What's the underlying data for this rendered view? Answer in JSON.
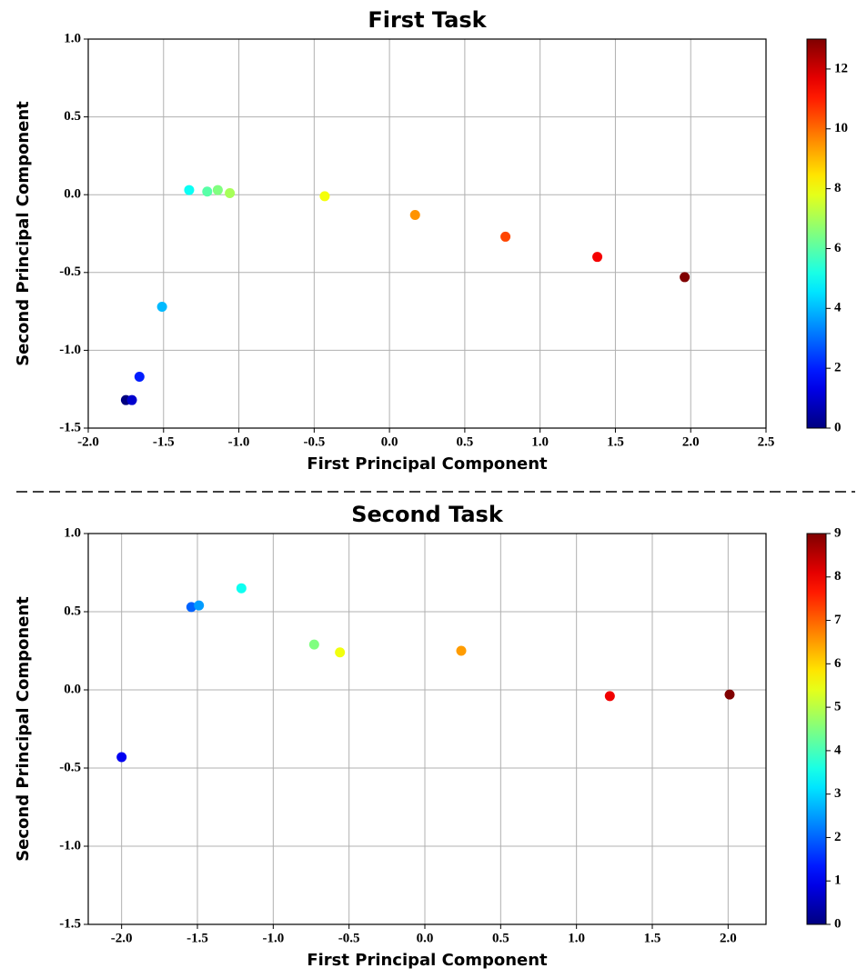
{
  "chart_data": [
    {
      "type": "scatter",
      "title": "First Task",
      "xlabel": "First Principal Component",
      "ylabel": "Second Principal Component",
      "x": [
        -1.75,
        -1.71,
        -1.66,
        -1.51,
        -1.33,
        -1.21,
        -1.14,
        -1.06,
        -0.43,
        0.17,
        0.77,
        1.38,
        1.96
      ],
      "y": [
        -1.32,
        -1.32,
        -1.17,
        -0.72,
        0.03,
        0.02,
        0.03,
        0.01,
        -0.01,
        -0.13,
        -0.27,
        -0.4,
        -0.53
      ],
      "c": [
        0,
        1,
        2,
        4,
        5,
        6,
        6.5,
        7,
        8,
        9.5,
        10.5,
        11.5,
        13
      ],
      "colormap": "jet",
      "clim": [
        0,
        13
      ],
      "cticks": [
        0,
        2,
        4,
        6,
        8,
        10,
        12
      ],
      "xlim": [
        -2,
        2.5
      ],
      "ylim": [
        -1.5,
        1
      ],
      "xticks": [
        {
          "value": -2,
          "label": "-2.0"
        },
        -1.5,
        {
          "value": -1,
          "label": "-1.0"
        },
        -0.5,
        {
          "value": 0,
          "label": "0.0"
        },
        0.5,
        {
          "value": 1,
          "label": "1.0"
        },
        1.5,
        {
          "value": 2,
          "label": "2.0"
        },
        2.5
      ],
      "yticks": [
        -1.5,
        {
          "value": -1,
          "label": "-1.0"
        },
        -0.5,
        {
          "value": 0,
          "label": "0.0"
        },
        0.5,
        {
          "value": 1,
          "label": "1.0"
        }
      ],
      "grid": true
    },
    {
      "type": "scatter",
      "title": "Second Task",
      "xlabel": "First Principal Component",
      "ylabel": "Second Principal Component",
      "x": [
        -2.0,
        -1.54,
        -1.49,
        -1.21,
        -0.73,
        -0.56,
        0.24,
        1.22,
        2.01
      ],
      "y": [
        -0.43,
        0.53,
        0.54,
        0.65,
        0.29,
        0.24,
        0.25,
        -0.04,
        -0.03
      ],
      "c": [
        1,
        2,
        2.5,
        3.5,
        4.5,
        5.5,
        6.5,
        8,
        9
      ],
      "colormap": "jet",
      "clim": [
        0,
        9
      ],
      "cticks": [
        0,
        1,
        2,
        3,
        4,
        5,
        6,
        7,
        8,
        9
      ],
      "xlim": [
        -2.22,
        2.25
      ],
      "ylim": [
        -1.5,
        1
      ],
      "xticks": [
        {
          "value": -2,
          "label": "-2.0"
        },
        -1.5,
        {
          "value": -1,
          "label": "-1.0"
        },
        -0.5,
        {
          "value": 0,
          "label": "0.0"
        },
        0.5,
        {
          "value": 1,
          "label": "1.0"
        },
        1.5,
        {
          "value": 2,
          "label": "2.0"
        }
      ],
      "yticks": [
        -1.5,
        {
          "value": -1,
          "label": "-1.0"
        },
        -0.5,
        {
          "value": 0,
          "label": "0.0"
        },
        0.5,
        {
          "value": 1,
          "label": "1.0"
        }
      ],
      "grid": true
    }
  ]
}
